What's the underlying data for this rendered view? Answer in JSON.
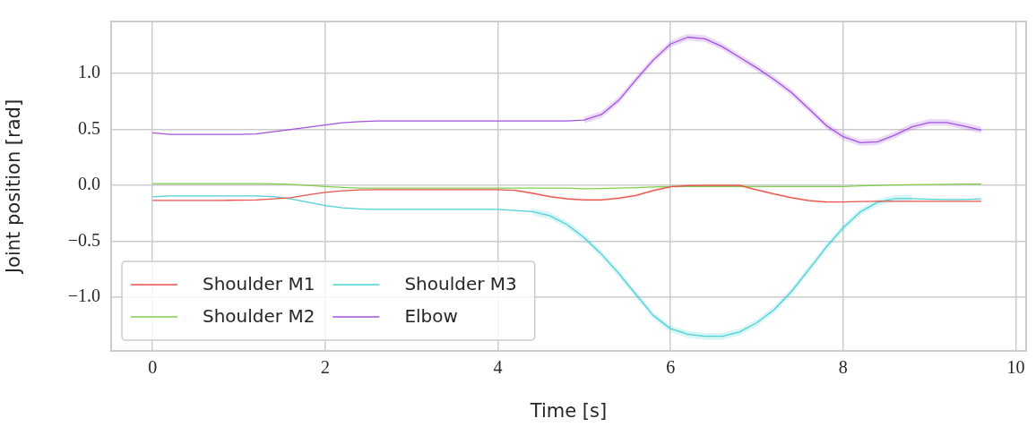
{
  "chart_data": {
    "type": "line",
    "xlabel": "Time [s]",
    "ylabel": "Joint position [rad]",
    "x": [
      0,
      0.2,
      0.4,
      0.6,
      0.8,
      1.0,
      1.2,
      1.4,
      1.6,
      1.8,
      2.0,
      2.2,
      2.4,
      2.6,
      2.8,
      3.0,
      3.2,
      3.4,
      3.6,
      3.8,
      4.0,
      4.2,
      4.4,
      4.6,
      4.8,
      5.0,
      5.2,
      5.4,
      5.6,
      5.8,
      6.0,
      6.2,
      6.4,
      6.6,
      6.8,
      7.0,
      7.2,
      7.4,
      7.6,
      7.8,
      8.0,
      8.2,
      8.4,
      8.6,
      8.8,
      9.0,
      9.2,
      9.4,
      9.6
    ],
    "series": [
      {
        "name": "Shoulder M1",
        "color": "#e8534a",
        "values": [
          -0.134,
          -0.134,
          -0.134,
          -0.134,
          -0.134,
          -0.133,
          -0.13,
          -0.12,
          -0.11,
          -0.085,
          -0.062,
          -0.048,
          -0.04,
          -0.039,
          -0.039,
          -0.039,
          -0.039,
          -0.039,
          -0.039,
          -0.039,
          -0.039,
          -0.045,
          -0.07,
          -0.1,
          -0.12,
          -0.13,
          -0.13,
          -0.115,
          -0.09,
          -0.047,
          -0.012,
          -0.003,
          0,
          0,
          0,
          -0.04,
          -0.077,
          -0.11,
          -0.136,
          -0.148,
          -0.148,
          -0.145,
          -0.142,
          -0.142,
          -0.142,
          -0.142,
          -0.142,
          -0.142,
          -0.142
        ],
        "lower": [
          null,
          null,
          null,
          null,
          null,
          null,
          null,
          null,
          null,
          null,
          null,
          null,
          null,
          null,
          null,
          null,
          null,
          null,
          null,
          null,
          null,
          -0.055,
          -0.08,
          -0.11,
          -0.13,
          -0.14,
          -0.14,
          -0.125,
          -0.1,
          -0.057,
          -0.022,
          -0.013,
          -0.01,
          -0.01,
          -0.01,
          -0.05,
          -0.087,
          -0.12,
          -0.146,
          -0.158,
          null,
          null,
          null,
          null,
          null,
          null,
          null,
          null,
          null
        ],
        "upper": [
          null,
          null,
          null,
          null,
          null,
          null,
          null,
          null,
          null,
          null,
          null,
          null,
          null,
          null,
          null,
          null,
          null,
          null,
          null,
          null,
          null,
          -0.035,
          -0.06,
          -0.09,
          -0.11,
          -0.12,
          -0.12,
          -0.105,
          -0.08,
          -0.037,
          -0.002,
          0.007,
          0.01,
          0.01,
          0.01,
          -0.03,
          -0.067,
          -0.1,
          -0.126,
          -0.138,
          null,
          null,
          null,
          null,
          null,
          null,
          null,
          null,
          null
        ]
      },
      {
        "name": "Shoulder M2",
        "color": "#7ed04b",
        "values": [
          0.015,
          0.015,
          0.015,
          0.015,
          0.015,
          0.015,
          0.015,
          0.013,
          0.01,
          0.0,
          -0.01,
          -0.018,
          -0.025,
          -0.025,
          -0.025,
          -0.025,
          -0.025,
          -0.025,
          -0.025,
          -0.025,
          -0.025,
          -0.025,
          -0.025,
          -0.025,
          -0.025,
          -0.03,
          -0.028,
          -0.025,
          -0.02,
          -0.015,
          -0.01,
          -0.01,
          -0.01,
          -0.01,
          -0.01,
          -0.01,
          -0.01,
          -0.01,
          -0.01,
          -0.01,
          -0.01,
          -0.005,
          0,
          0.003,
          0.005,
          0.007,
          0.009,
          0.011,
          0.012
        ]
      },
      {
        "name": "Shoulder M3",
        "color": "#4dd0d8",
        "values": [
          -0.103,
          -0.095,
          -0.095,
          -0.095,
          -0.095,
          -0.095,
          -0.095,
          -0.1,
          -0.12,
          -0.15,
          -0.18,
          -0.2,
          -0.21,
          -0.215,
          -0.215,
          -0.215,
          -0.215,
          -0.215,
          -0.215,
          -0.215,
          -0.215,
          -0.225,
          -0.235,
          -0.27,
          -0.35,
          -0.467,
          -0.615,
          -0.787,
          -0.976,
          -1.163,
          -1.281,
          -1.331,
          -1.349,
          -1.349,
          -1.311,
          -1.228,
          -1.112,
          -0.95,
          -0.754,
          -0.556,
          -0.379,
          -0.237,
          -0.151,
          -0.118,
          -0.118,
          -0.124,
          -0.127,
          -0.127,
          -0.121
        ],
        "lower": [
          null,
          null,
          null,
          null,
          null,
          null,
          null,
          null,
          null,
          null,
          null,
          null,
          null,
          null,
          null,
          null,
          null,
          null,
          null,
          null,
          null,
          null,
          -0.265,
          -0.3,
          -0.38,
          -0.497,
          -0.645,
          -0.817,
          -1.006,
          -1.193,
          -1.311,
          -1.361,
          -1.379,
          -1.379,
          -1.341,
          -1.258,
          -1.142,
          -0.98,
          -0.784,
          -0.586,
          -0.409,
          -0.267,
          -0.181,
          -0.148,
          -0.148,
          null,
          null,
          null,
          null
        ],
        "upper": [
          null,
          null,
          null,
          null,
          null,
          null,
          null,
          null,
          null,
          null,
          null,
          null,
          null,
          null,
          null,
          null,
          null,
          null,
          null,
          null,
          null,
          null,
          -0.205,
          -0.24,
          -0.32,
          -0.437,
          -0.585,
          -0.757,
          -0.946,
          -1.133,
          -1.251,
          -1.301,
          -1.319,
          -1.319,
          -1.281,
          -1.198,
          -1.082,
          -0.92,
          -0.724,
          -0.526,
          -0.349,
          -0.207,
          -0.121,
          -0.088,
          -0.088,
          null,
          null,
          null,
          null
        ]
      },
      {
        "name": "Elbow",
        "color": "#a352e0",
        "values": [
          0.47,
          0.455,
          0.455,
          0.455,
          0.455,
          0.455,
          0.46,
          0.48,
          0.5,
          0.52,
          0.54,
          0.56,
          0.57,
          0.575,
          0.575,
          0.575,
          0.575,
          0.575,
          0.575,
          0.575,
          0.575,
          0.575,
          0.575,
          0.575,
          0.575,
          0.583,
          0.633,
          0.76,
          0.944,
          1.12,
          1.263,
          1.325,
          1.31,
          1.24,
          1.145,
          1.05,
          0.947,
          0.83,
          0.686,
          0.538,
          0.435,
          0.382,
          0.39,
          0.45,
          0.524,
          0.562,
          0.562,
          0.53,
          0.494
        ],
        "lower": [
          null,
          null,
          null,
          null,
          null,
          null,
          null,
          null,
          null,
          null,
          null,
          null,
          null,
          null,
          null,
          null,
          null,
          null,
          null,
          null,
          null,
          null,
          null,
          null,
          null,
          0.553,
          0.603,
          0.73,
          0.914,
          1.09,
          1.233,
          1.295,
          1.28,
          1.21,
          1.115,
          1.02,
          0.917,
          0.8,
          0.656,
          0.508,
          0.405,
          0.352,
          0.36,
          0.42,
          0.494,
          0.532,
          0.532,
          0.5,
          0.464
        ],
        "upper": [
          null,
          null,
          null,
          null,
          null,
          null,
          null,
          null,
          null,
          null,
          null,
          null,
          null,
          null,
          null,
          null,
          null,
          null,
          null,
          null,
          null,
          null,
          null,
          null,
          null,
          0.613,
          0.663,
          0.79,
          0.974,
          1.15,
          1.293,
          1.355,
          1.34,
          1.27,
          1.175,
          1.08,
          0.977,
          0.86,
          0.716,
          0.568,
          0.465,
          0.412,
          0.42,
          0.48,
          0.554,
          0.592,
          0.592,
          0.56,
          0.524
        ]
      }
    ],
    "xlim": [
      -0.48,
      10.12
    ],
    "xticks": [
      0,
      2,
      4,
      6,
      8,
      10
    ],
    "ylim": [
      -1.48,
      1.465
    ],
    "yticks": [
      {
        "value": -1,
        "label": "−1.0"
      },
      {
        "value": -0.5,
        "label": "−0.5"
      },
      {
        "value": 0,
        "label": "0.0"
      },
      {
        "value": 0.5,
        "label": "0.5"
      },
      {
        "value": 1,
        "label": "1.0"
      }
    ],
    "grid": true,
    "legend": "bottom left",
    "marker": "none",
    "line_style": "solid"
  }
}
